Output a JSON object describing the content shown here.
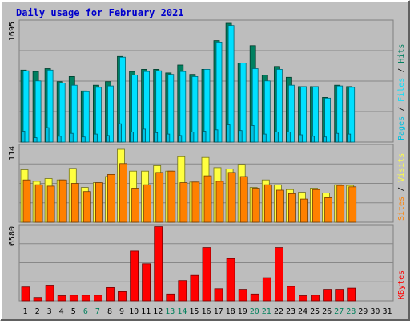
{
  "colors": {
    "background": "#c0c0c0",
    "plot_bg": "#bdbdbd",
    "title": "#0000cc",
    "hits": "#008060",
    "files": "#00e0ff",
    "pages": "#00c0e0",
    "visits": "#ffff40",
    "sites": "#ff8000",
    "kbytes": "#ff0000",
    "weekend": "#00805c",
    "grid": "#888888"
  },
  "chart_data": {
    "type": "bar",
    "title": "Daily usage for February 2021",
    "x": [
      "1",
      "2",
      "3",
      "4",
      "5",
      "6",
      "7",
      "8",
      "9",
      "10",
      "11",
      "12",
      "13",
      "14",
      "15",
      "16",
      "17",
      "18",
      "19",
      "20",
      "21",
      "22",
      "23",
      "24",
      "25",
      "26",
      "27",
      "28",
      "29",
      "30",
      "31"
    ],
    "weekend_days": [
      "6",
      "7",
      "13",
      "14",
      "20",
      "21",
      "27",
      "28"
    ],
    "panels": [
      {
        "id": "hits",
        "ymax_label": "1695",
        "ylim": [
          0,
          1695
        ],
        "legend": [
          "Pages",
          "Files",
          "Hits"
        ],
        "series": [
          {
            "name": "Hits",
            "values": [
              1000,
              980,
              1020,
              840,
              910,
              710,
              790,
              840,
              1190,
              980,
              1010,
              1010,
              960,
              1070,
              940,
              1010,
              1410,
              1650,
              1100,
              1340,
              930,
              1050,
              900,
              770,
              770,
              620,
              790,
              770,
              null,
              null,
              null
            ]
          },
          {
            "name": "Files",
            "values": [
              990,
              850,
              1000,
              820,
              790,
              700,
              760,
              780,
              1180,
              930,
              980,
              990,
              940,
              980,
              910,
              1010,
              1390,
              1620,
              1100,
              1020,
              850,
              1010,
              790,
              770,
              770,
              610,
              780,
              760,
              null,
              null,
              null
            ]
          },
          {
            "name": "Pages",
            "values": [
              150,
              60,
              200,
              80,
              120,
              70,
              110,
              90,
              320,
              140,
              180,
              130,
              110,
              90,
              140,
              150,
              170,
              240,
              160,
              230,
              110,
              140,
              140,
              100,
              80,
              70,
              120,
              110,
              null,
              null,
              null
            ]
          }
        ]
      },
      {
        "id": "visits",
        "ymax_label": "114",
        "ylim": [
          0,
          114
        ],
        "legend": [
          "Sites",
          "Visits"
        ],
        "series": [
          {
            "name": "Visits",
            "values": [
              77,
              60,
              64,
              62,
              79,
              51,
              58,
              67,
              107,
              75,
              75,
              83,
              75,
              96,
              59,
              95,
              80,
              78,
              85,
              51,
              62,
              55,
              48,
              44,
              50,
              43,
              55,
              54,
              null,
              null,
              null
            ]
          },
          {
            "name": "Sites",
            "values": [
              62,
              55,
              53,
              62,
              57,
              45,
              58,
              70,
              86,
              50,
              55,
              73,
              75,
              58,
              59,
              68,
              60,
              73,
              67,
              50,
              55,
              47,
              42,
              34,
              48,
              36,
              54,
              52,
              null,
              null,
              null
            ]
          }
        ]
      },
      {
        "id": "kbytes",
        "ymax_label": "6580",
        "ylim": [
          0,
          6580
        ],
        "legend": [
          "KBytes"
        ],
        "series": [
          {
            "name": "KBytes",
            "values": [
              1200,
              300,
              1350,
              450,
              500,
              500,
              500,
              1150,
              800,
              4300,
              3200,
              6400,
              600,
              1750,
              2200,
              4600,
              1050,
              3650,
              1000,
              600,
              2000,
              4600,
              1250,
              450,
              500,
              1000,
              1000,
              1100,
              null,
              null,
              null
            ]
          }
        ]
      }
    ]
  }
}
